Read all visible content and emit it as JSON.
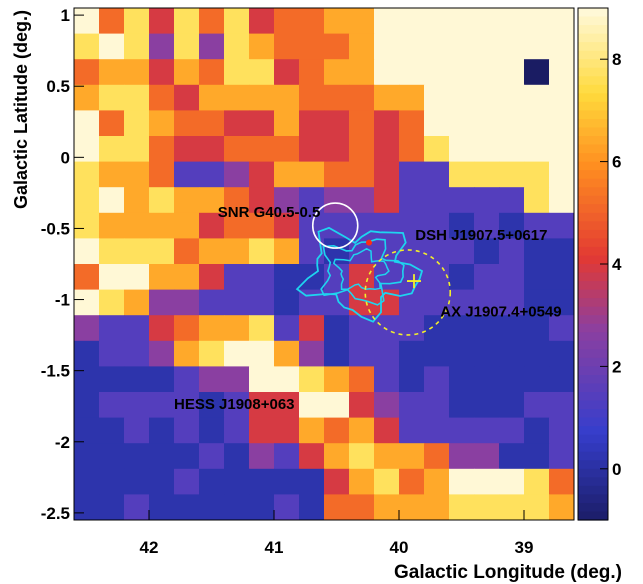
{
  "chart_data": {
    "type": "heatmap",
    "xlabel": "Galactic Longitude (deg.)",
    "ylabel": "Galactic Latitude (deg.)",
    "xlim": [
      42.6,
      38.6
    ],
    "ylim": [
      -2.55,
      1.05
    ],
    "x_ticks": [
      42,
      41,
      40,
      39
    ],
    "y_ticks": [
      1,
      0.5,
      0,
      -0.5,
      -1,
      -1.5,
      -2,
      -2.5
    ],
    "x_tick_labels": [
      "42",
      "41",
      "40",
      "39"
    ],
    "y_tick_labels": [
      "1",
      "0.5",
      "0",
      "-0.5",
      "-1",
      "-1.5",
      "-2",
      "-2.5"
    ],
    "colorbar": {
      "range": [
        -1,
        9
      ],
      "ticks": [
        0,
        2,
        4,
        6,
        8
      ],
      "tick_labels": [
        "0",
        "2",
        "4",
        "6",
        "8"
      ]
    },
    "grid": {
      "nx": 20,
      "ny": 20,
      "rows": [
        "85747574556688888888",
        "78737376555688888888",
        "56646577456688888808",
        "67754666655566888888",
        "85765544644545888888",
        "87754455544545788888",
        "76652234665542277778",
        "79676654323342222278",
        "76666455422222212122",
        "87775667621222221211",
        "58866422112422212211",
        "87633222122442222211",
        "32245667241222111112",
        "12236788631221111111",
        "11112338876521211111",
        "12222124488432211122",
        "11212124465642222212",
        "11111213246766533112",
        "11112111114675688875",
        "11211111215566677776"
      ]
    },
    "annotations": [
      {
        "text": "SNR G40.5-0.5",
        "x": 41.45,
        "y": -0.42,
        "color": "#ffffff"
      },
      {
        "text": "DSH J1907.5+0617",
        "x": 39.87,
        "y": -0.58,
        "color": "#ff2d12"
      },
      {
        "text": "AX J1907.4+0549",
        "x": 39.67,
        "y": -1.12,
        "color": "#f3ef2a"
      },
      {
        "text": "HESS J1908+063",
        "x": 41.8,
        "y": -1.77,
        "color": "#1ed4ef"
      }
    ],
    "snr_circle": {
      "x": 40.51,
      "y": -0.48,
      "r_deg": 0.18,
      "color": "#ffffff"
    },
    "ax_circle": {
      "x": 39.93,
      "y": -0.95,
      "r_deg": 0.34,
      "color": "#f3ef2a"
    },
    "ax_marker": {
      "x": 39.88,
      "y": -0.87,
      "color": "#f3ef2a"
    },
    "dsh_marker": {
      "x": 40.24,
      "y": -0.6,
      "color": "#ff2d12"
    }
  },
  "colors": {
    "low": "#1a1c63",
    "mid": "#8c3fa0",
    "high": "#ff6a1c",
    "top": "#fff8d6",
    "contour": "#1ed4ef"
  }
}
